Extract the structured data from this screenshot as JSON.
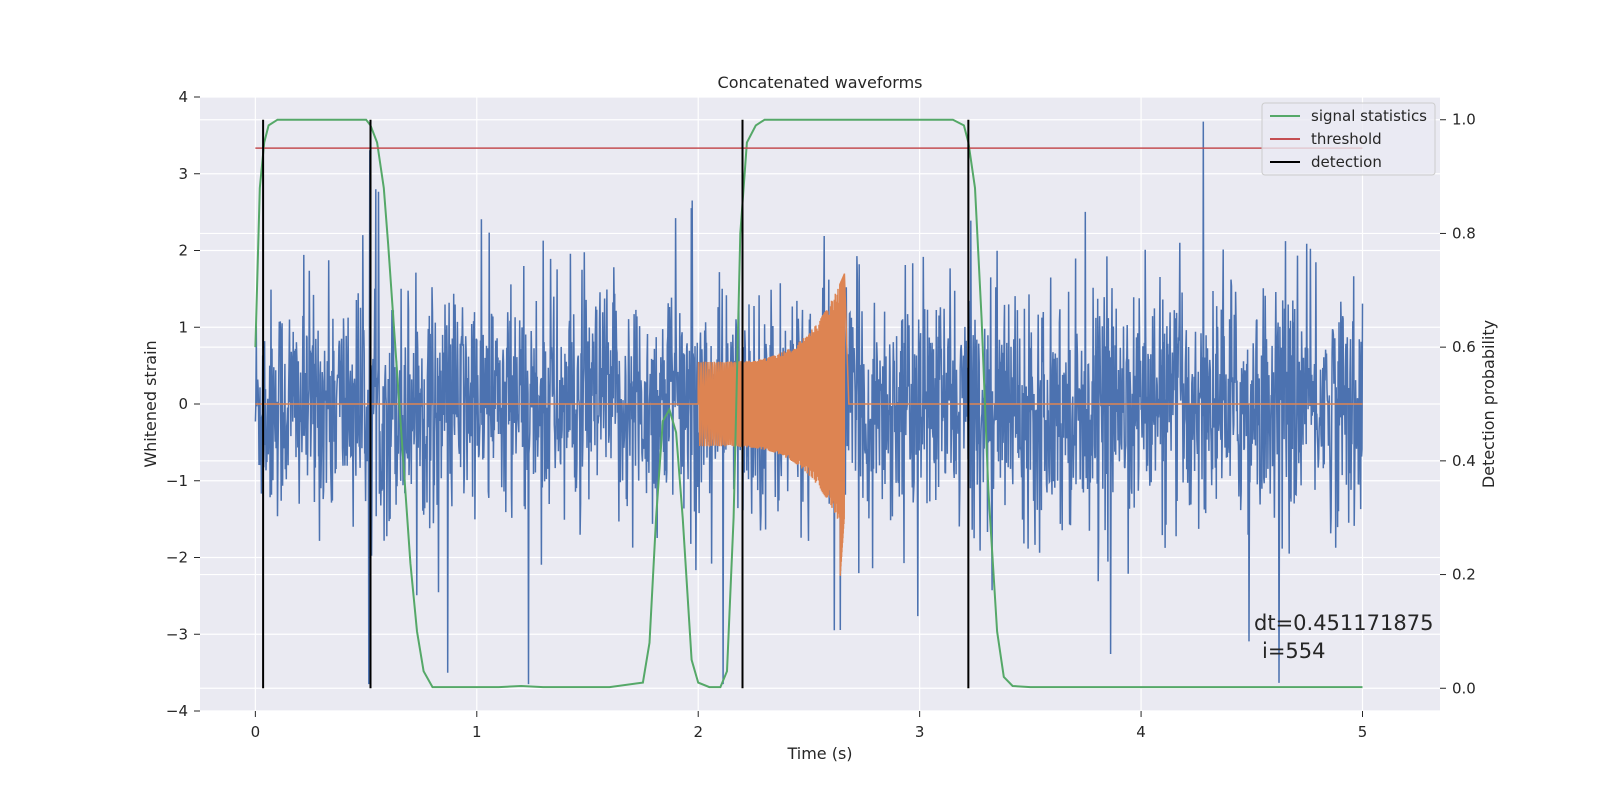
{
  "chart_data": {
    "type": "line",
    "title": "Concatenated waveforms",
    "xlabel": "Time (s)",
    "ylabel": "Whitened strain",
    "y2label": "Detection probability",
    "xlim": [
      -0.25,
      5.35
    ],
    "ylim": [
      -4,
      4
    ],
    "y2lim": [
      -0.04,
      1.04
    ],
    "x_ticks": [
      0,
      1,
      2,
      3,
      4,
      5
    ],
    "y_ticks": [
      -4,
      -3,
      -2,
      -1,
      0,
      1,
      2,
      3,
      4
    ],
    "y_tick_labels": [
      "−4",
      "−3",
      "−2",
      "−1",
      "0",
      "1",
      "2",
      "3",
      "4"
    ],
    "y2_ticks": [
      0.0,
      0.2,
      0.4,
      0.6,
      0.8,
      1.0
    ],
    "y2_tick_labels": [
      "0.0",
      "0.2",
      "0.4",
      "0.6",
      "0.8",
      "1.0"
    ],
    "grid": true,
    "background": "#eaeaf2",
    "legend_position": "top-right",
    "series": [
      {
        "legend": "",
        "axis": "left",
        "color": "#4c72b0",
        "kind": "noise",
        "x_range": [
          0,
          5
        ],
        "typical_amplitude": 0.7,
        "peak_range": [
          -3.65,
          3.68
        ]
      },
      {
        "legend": "",
        "axis": "left",
        "color": "#dd8452",
        "kind": "chirp",
        "x_range": [
          2.0,
          2.66
        ],
        "amplitude_start": 0.55,
        "amplitude_peak": 1.7,
        "trough_peak": -2.3,
        "flat_value": 0
      },
      {
        "legend": "signal statistics",
        "axis": "right",
        "color": "#55a868",
        "x": [
          0.0,
          0.02,
          0.04,
          0.06,
          0.1,
          0.15,
          0.5,
          0.52,
          0.55,
          0.58,
          0.6,
          0.65,
          0.7,
          0.73,
          0.76,
          0.8,
          1.0,
          1.1,
          1.2,
          1.3,
          1.6,
          1.75,
          1.78,
          1.81,
          1.84,
          1.87,
          1.9,
          1.93,
          1.97,
          2.0,
          2.05,
          2.1,
          2.13,
          2.16,
          2.19,
          2.22,
          2.26,
          2.3,
          2.35,
          3.15,
          3.2,
          3.22,
          3.25,
          3.28,
          3.31,
          3.35,
          3.38,
          3.42,
          3.5,
          4.0,
          5.0
        ],
        "y": [
          0.6,
          0.88,
          0.96,
          0.99,
          1.0,
          1.0,
          1.0,
          0.99,
          0.96,
          0.88,
          0.78,
          0.5,
          0.22,
          0.1,
          0.03,
          0.002,
          0.002,
          0.002,
          0.004,
          0.002,
          0.002,
          0.01,
          0.08,
          0.3,
          0.47,
          0.49,
          0.45,
          0.3,
          0.05,
          0.01,
          0.002,
          0.002,
          0.03,
          0.3,
          0.8,
          0.96,
          0.99,
          1.0,
          1.0,
          1.0,
          0.99,
          0.96,
          0.88,
          0.65,
          0.35,
          0.1,
          0.02,
          0.004,
          0.002,
          0.002,
          0.002
        ]
      },
      {
        "legend": "threshold",
        "axis": "right",
        "color": "#c44e52",
        "x": [
          0,
          5
        ],
        "y": [
          0.95,
          0.95
        ]
      }
    ],
    "detections": {
      "legend": "detection",
      "color": "#000000",
      "axis": "right",
      "x": [
        0.035,
        0.52,
        2.2,
        3.22
      ],
      "y_range": [
        0.0,
        1.0
      ]
    },
    "annotations": [
      "dt=0.451171875",
      "i=554"
    ]
  }
}
